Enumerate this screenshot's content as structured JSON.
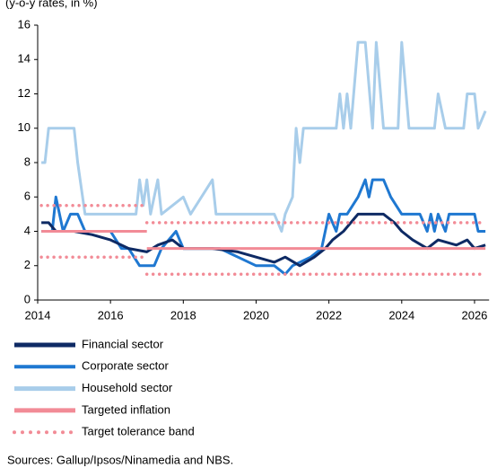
{
  "chart_data": {
    "type": "line",
    "subtitle": "(y-o-y rates, in %)",
    "source": "Sources:  Gallup/Ipsos/Ninamedia   and NBS.",
    "xlim": [
      2014,
      2026.4
    ],
    "xticks": [
      2014,
      2016,
      2018,
      2020,
      2022,
      2024,
      2026
    ],
    "ylim": [
      0,
      16
    ],
    "yticks": [
      0,
      2,
      4,
      6,
      8,
      10,
      12,
      14,
      16
    ],
    "grid": false,
    "series": [
      {
        "name": "Financial sector",
        "color": "#0e2a64",
        "style": "solid",
        "x": [
          2014.1,
          2014.3,
          2014.5,
          2015.0,
          2015.5,
          2016.0,
          2016.5,
          2017.0,
          2017.3,
          2017.7,
          2018.0,
          2018.8,
          2019.5,
          2020.0,
          2020.5,
          2020.8,
          2021.2,
          2021.6,
          2021.9,
          2022.1,
          2022.4,
          2022.8,
          2023.5,
          2023.8,
          2024.0,
          2024.3,
          2024.7,
          2025.0,
          2025.5,
          2025.8,
          2026.0,
          2026.3
        ],
        "values": [
          4.5,
          4.5,
          4,
          4,
          3.8,
          3.5,
          3,
          2.8,
          3.2,
          3.5,
          3,
          3,
          2.8,
          2.5,
          2.2,
          2.5,
          2,
          2.5,
          3,
          3.5,
          4,
          5,
          5,
          4.5,
          4,
          3.5,
          3,
          3.5,
          3.2,
          3.5,
          3,
          3.2
        ]
      },
      {
        "name": "Corporate sector",
        "color": "#1f78d1",
        "style": "solid",
        "x": [
          2014.1,
          2014.4,
          2014.5,
          2014.7,
          2014.9,
          2015.1,
          2015.3,
          2016.0,
          2016.3,
          2016.5,
          2016.8,
          2017.2,
          2017.4,
          2017.8,
          2018.0,
          2019.0,
          2019.5,
          2020.0,
          2020.5,
          2020.8,
          2021.0,
          2021.5,
          2021.8,
          2022.0,
          2022.2,
          2022.3,
          2022.5,
          2022.8,
          2023.0,
          2023.1,
          2023.2,
          2023.5,
          2023.7,
          2024.0,
          2024.5,
          2024.7,
          2024.8,
          2024.9,
          2025.0,
          2025.2,
          2025.3,
          2026.0,
          2026.1,
          2026.3
        ],
        "values": [
          4,
          4,
          6,
          4,
          5,
          5,
          4,
          4,
          3,
          3,
          2,
          2,
          3,
          4,
          3,
          3,
          2.5,
          2,
          2,
          1.5,
          2,
          2.5,
          3,
          5,
          4,
          5,
          5,
          6,
          7,
          6,
          7,
          7,
          6,
          5,
          5,
          4,
          5,
          4,
          5,
          4,
          5,
          5,
          4,
          4
        ]
      },
      {
        "name": "Household sector",
        "color": "#a8cdea",
        "style": "solid",
        "x": [
          2014.1,
          2014.2,
          2014.3,
          2015.0,
          2015.1,
          2015.3,
          2016.7,
          2016.8,
          2016.9,
          2017.0,
          2017.1,
          2017.3,
          2017.4,
          2018.0,
          2018.2,
          2018.8,
          2018.9,
          2020.5,
          2020.7,
          2020.8,
          2021.0,
          2021.1,
          2021.2,
          2021.3,
          2022.2,
          2022.3,
          2022.4,
          2022.5,
          2022.6,
          2022.8,
          2023.0,
          2023.2,
          2023.3,
          2023.5,
          2023.9,
          2024.0,
          2024.2,
          2024.9,
          2025.0,
          2025.2,
          2025.7,
          2025.8,
          2026.0,
          2026.1,
          2026.3
        ],
        "values": [
          8,
          8,
          10,
          10,
          8,
          5,
          5,
          7,
          5.5,
          7,
          5,
          7,
          5,
          6,
          5,
          7,
          5,
          5,
          4,
          5,
          6,
          10,
          8,
          10,
          10,
          12,
          10,
          12,
          10,
          15,
          15,
          10,
          15,
          10,
          10,
          15,
          10,
          10,
          12,
          10,
          10,
          12,
          12,
          10,
          11
        ]
      },
      {
        "name": "Targeted inflation",
        "color": "#f28b96",
        "style": "solid",
        "x": [
          2014.1,
          2017.0,
          2017.0,
          2017.0,
          2026.3
        ],
        "values": [
          4,
          4,
          null,
          3,
          3
        ]
      },
      {
        "name": "Target tolerance band",
        "color": "#f28b96",
        "style": "dotted",
        "x": [
          2014.1,
          2017.0,
          2017.0,
          2017.0,
          2026.3
        ],
        "values": [
          5.5,
          5.5,
          null,
          4.5,
          4.5
        ],
        "lower": [
          2.5,
          2.5,
          null,
          1.5,
          1.5
        ]
      }
    ]
  }
}
